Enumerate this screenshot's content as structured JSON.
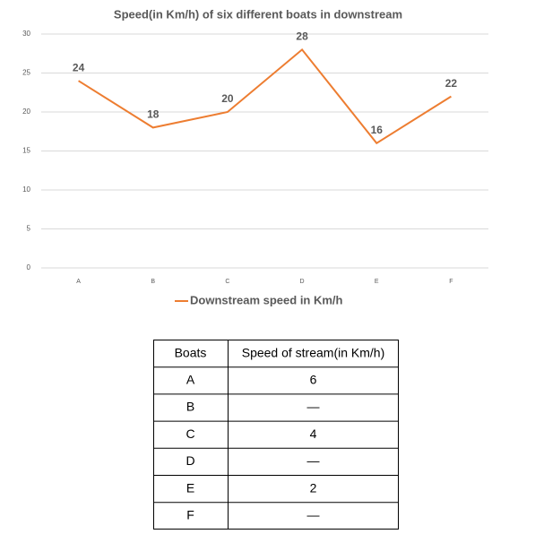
{
  "chart_data": {
    "type": "line",
    "title": "Speed(in Km/h) of six different boats in downstream",
    "categories": [
      "A",
      "B",
      "C",
      "D",
      "E",
      "F"
    ],
    "series": [
      {
        "name": "Downstream speed in Km/h",
        "color": "#ed7d31",
        "values": [
          24,
          18,
          20,
          28,
          16,
          22
        ]
      }
    ],
    "ylim": [
      0,
      30
    ],
    "yticks": [
      0,
      5,
      10,
      15,
      20,
      25,
      30
    ],
    "grid": true,
    "legend": "bottom"
  },
  "table": {
    "header": [
      "Boats",
      "Speed of stream(in Km/h)"
    ],
    "rows": [
      [
        "A",
        "6"
      ],
      [
        "B",
        "—"
      ],
      [
        "C",
        "4"
      ],
      [
        "D",
        "—"
      ],
      [
        "E",
        "2"
      ],
      [
        "F",
        "—"
      ]
    ]
  }
}
